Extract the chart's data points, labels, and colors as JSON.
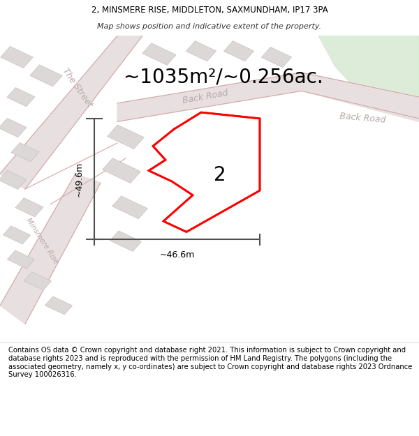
{
  "title_line1": "2, MINSMERE RISE, MIDDLETON, SAXMUNDHAM, IP17 3PA",
  "title_line2": "Map shows position and indicative extent of the property.",
  "area_text": "~1035m²/~0.256ac.",
  "label_2": "2",
  "dim_width": "~46.6m",
  "dim_height": "~49.6m",
  "footer_text": "Contains OS data © Crown copyright and database right 2021. This information is subject to Crown copyright and database rights 2023 and is reproduced with the permission of HM Land Registry. The polygons (including the associated geometry, namely x, y co-ordinates) are subject to Crown copyright and database rights 2023 Ordnance Survey 100026316.",
  "map_bg": "#f2eeee",
  "road_fill": "#e8e0e0",
  "road_line_color": "#d4a8a8",
  "road_label_color": "#b8a8a8",
  "building_fill": "#ddd8d8",
  "building_edge": "#c8c0c0",
  "plot_color": "#ff0000",
  "plot_fill": "#ffffff",
  "dim_color": "#505050",
  "green_area": "#d4e8d0",
  "title_fontsize": 8.5,
  "footer_fontsize": 7.2,
  "area_fontsize": 20,
  "label_fontsize": 20,
  "road_label_fontsize": 9,
  "dim_fontsize": 9,
  "map_title_split": 0.082,
  "footer_split": 0.215
}
